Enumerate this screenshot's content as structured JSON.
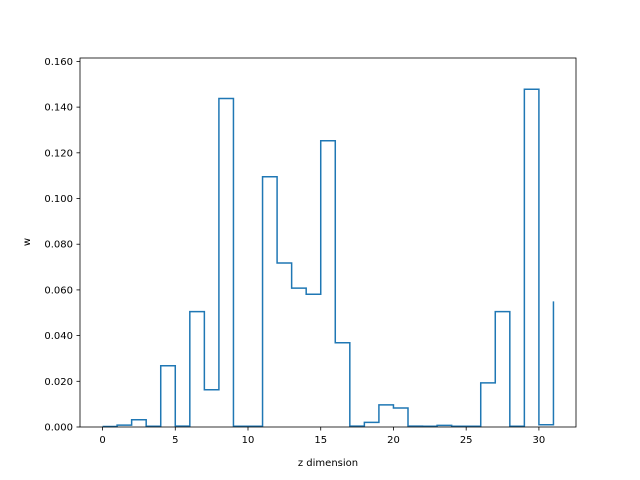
{
  "chart_data": {
    "type": "step",
    "xlabel": "z dimension",
    "ylabel": "w",
    "xlim": [
      -1.55,
      32.55
    ],
    "ylim": [
      0,
      0.1615
    ],
    "xticks": [
      0,
      5,
      10,
      15,
      20,
      25,
      30
    ],
    "yticks": [
      0.0,
      0.02,
      0.04,
      0.06,
      0.08,
      0.1,
      0.12,
      0.14,
      0.16
    ],
    "ytick_labels": [
      "0.000",
      "0.020",
      "0.040",
      "0.060",
      "0.080",
      "0.100",
      "0.120",
      "0.140",
      "0.160"
    ],
    "xtick_labels": [
      "0",
      "5",
      "10",
      "15",
      "20",
      "25",
      "30"
    ],
    "line_color": "#1f77b4",
    "x": [
      0,
      1,
      2,
      3,
      4,
      5,
      6,
      7,
      8,
      9,
      10,
      11,
      12,
      13,
      14,
      15,
      16,
      17,
      18,
      19,
      20,
      21,
      22,
      23,
      24,
      25,
      26,
      27,
      28,
      29,
      30,
      31
    ],
    "values": [
      0.0002,
      0.0008,
      0.0032,
      0.0003,
      0.0268,
      0.0004,
      0.0505,
      0.0163,
      0.1438,
      0.0003,
      0.0003,
      0.1095,
      0.0718,
      0.0608,
      0.0581,
      0.1253,
      0.0369,
      0.0004,
      0.002,
      0.0097,
      0.0083,
      0.0004,
      0.0003,
      0.0007,
      0.0003,
      0.0003,
      0.0193,
      0.0505,
      0.0003,
      0.1478,
      0.001,
      0.055
    ]
  }
}
